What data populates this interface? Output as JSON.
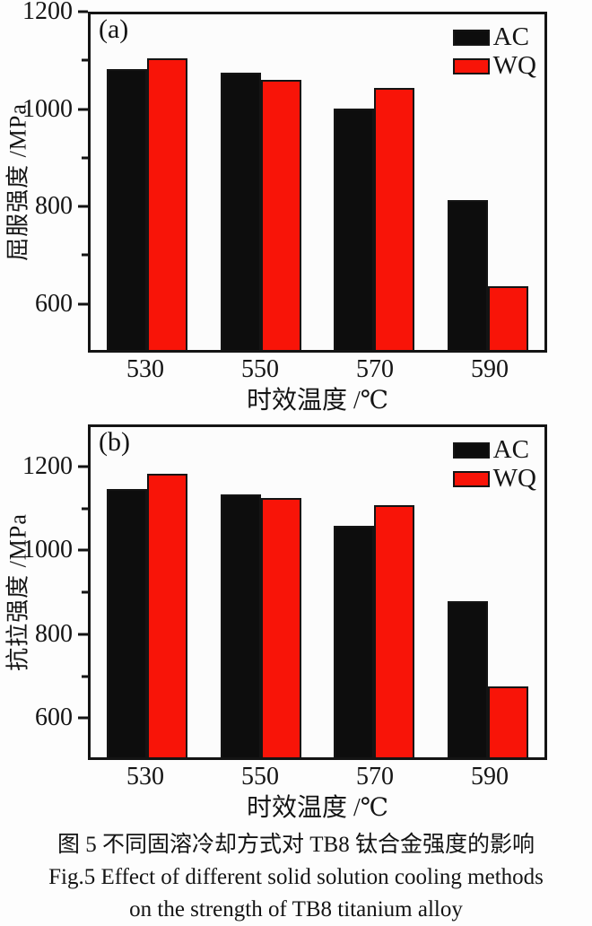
{
  "figure": {
    "caption_zh": "图 5  不同固溶冷却方式对 TB8 钛合金强度的影响",
    "caption_en_line1": "Fig.5  Effect of different solid solution cooling methods",
    "caption_en_line2": "on the strength of TB8 titanium alloy"
  },
  "colors": {
    "ac_black": "#0d0d0d",
    "wq_red": "#f81408",
    "axis": "#141414"
  },
  "chart_data": [
    {
      "type": "bar",
      "panel": "(a)",
      "title": "",
      "categories": [
        "530",
        "550",
        "570",
        "590"
      ],
      "series": [
        {
          "name": "AC",
          "color": "#0d0d0d",
          "values": [
            1085,
            1078,
            1004,
            812
          ]
        },
        {
          "name": "WQ",
          "color": "#f81408",
          "values": [
            1108,
            1064,
            1047,
            632
          ]
        }
      ],
      "xlabel": "时效温度 /℃",
      "ylabel": "屈服强度 /MPa",
      "ylim": [
        500,
        1200
      ],
      "yticks_major": [
        600,
        800,
        1000,
        1200
      ],
      "yticks_minor": [
        700,
        900,
        1100
      ],
      "grid": false,
      "legend_position": "top-right"
    },
    {
      "type": "bar",
      "panel": "(b)",
      "title": "",
      "categories": [
        "530",
        "550",
        "570",
        "590"
      ],
      "series": [
        {
          "name": "AC",
          "color": "#0d0d0d",
          "values": [
            1150,
            1136,
            1061,
            878
          ]
        },
        {
          "name": "WQ",
          "color": "#f81408",
          "values": [
            1188,
            1129,
            1111,
            672
          ]
        }
      ],
      "xlabel": "时效温度 /℃",
      "ylabel": "抗拉强度 /MPa",
      "ylim": [
        500,
        1300
      ],
      "yticks_major": [
        600,
        800,
        1000,
        1200
      ],
      "yticks_minor": [
        700,
        900,
        1100
      ],
      "grid": false,
      "legend_position": "top-right"
    }
  ]
}
